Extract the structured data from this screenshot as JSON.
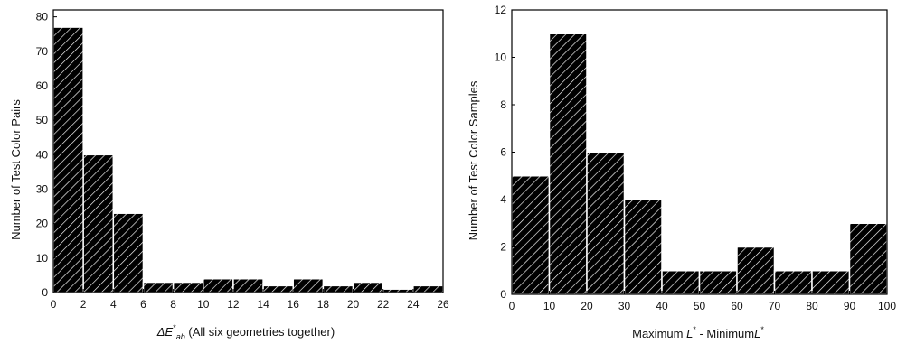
{
  "chart_data": [
    {
      "type": "bar",
      "title": "",
      "xlabel_prefix": "ΔE",
      "xlabel_sup": "*",
      "xlabel_sub": "ab",
      "xlabel_suffix": "(All six geometries together)",
      "ylabel": "Number of Test Color Pairs",
      "xlim": [
        0,
        26
      ],
      "ylim": [
        0,
        82
      ],
      "xticks": [
        0,
        2,
        4,
        6,
        8,
        10,
        12,
        14,
        16,
        18,
        20,
        22,
        24,
        26
      ],
      "yticks": [
        0,
        10,
        20,
        30,
        40,
        50,
        60,
        70,
        80
      ],
      "bin_edges": [
        0,
        2,
        4,
        6,
        8,
        10,
        12,
        14,
        16,
        18,
        20,
        22,
        24,
        26
      ],
      "values": [
        77,
        40,
        23,
        3,
        3,
        4,
        4,
        2,
        4,
        2,
        3,
        1,
        2
      ],
      "grid": false,
      "bar_fill": "#000000",
      "hatch_color": "#ffffff"
    },
    {
      "type": "bar",
      "title": "",
      "xlabel_parts": [
        "Maximum ",
        "L",
        "*",
        " - Minimum",
        "L",
        "*"
      ],
      "ylabel": "Number of Test Color Samples",
      "xlim": [
        0,
        100
      ],
      "ylim": [
        0,
        12
      ],
      "xticks": [
        0,
        10,
        20,
        30,
        40,
        50,
        60,
        70,
        80,
        90,
        100
      ],
      "yticks": [
        0,
        2,
        4,
        6,
        8,
        10,
        12
      ],
      "bin_edges": [
        0,
        10,
        20,
        30,
        40,
        50,
        60,
        70,
        80,
        90,
        100
      ],
      "values": [
        5,
        11,
        6,
        4,
        1,
        1,
        2,
        1,
        1,
        3
      ],
      "grid": false,
      "bar_fill": "#000000",
      "hatch_color": "#ffffff"
    }
  ]
}
